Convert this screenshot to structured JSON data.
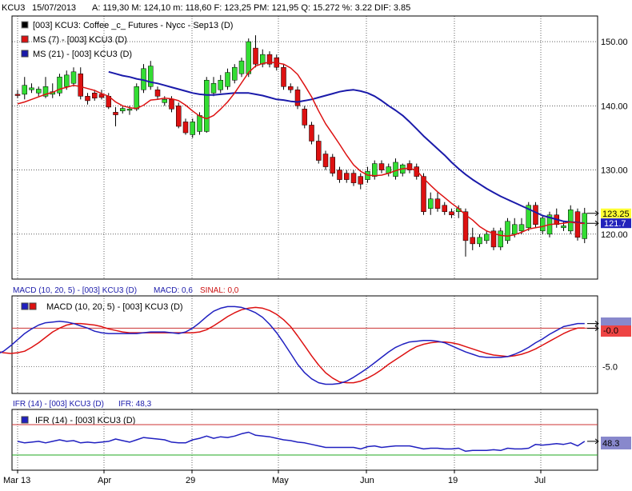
{
  "colors": {
    "up": "#33dd33",
    "down": "#dd1111",
    "ms_fast": "#dd1111",
    "ms_slow": "#1a1aaa",
    "macd": "#2020c0",
    "signal": "#dd1111",
    "ifr": "#2020c0",
    "ifr_upper": "#cc3333",
    "ifr_lower": "#22aa22",
    "grid": "#000000",
    "label_blue": "#1a1aaa",
    "label_red": "#cc1111"
  },
  "header": {
    "symbol": "KCU3",
    "date": "15/07/2013",
    "fields": "A: 119,30    M: 124,10    m: 118,60    F: 123,25   PM: 121,95   Q: 15.272   %: 3.22  DIF: 3.85"
  },
  "price_panel": {
    "legend": [
      {
        "icon": "black-square-icon",
        "text": "[003] KCU3: Coffee _c_ Futures - Nycc - Sep13      (D)"
      },
      {
        "icon": "red-square-icon",
        "text": "MS (7)   - [003] KCU3 (D)"
      },
      {
        "icon": "blue-square-icon",
        "text": "MS (21)   - [003] KCU3 (D)"
      }
    ],
    "last_label": "123.25",
    "ma_label": "121.7"
  },
  "macd_panel": {
    "header_name": "MACD (10, 20, 5)  - [003] KCU3 (D)",
    "header_macd": "MACD: 0,6",
    "header_signal": "SINAL: 0,0",
    "legend_text": "MACD (10, 20, 5)   - [003] KCU3 (D)",
    "last_label": "-0.0"
  },
  "ifr_panel": {
    "header_name": "IFR (14)  - [003] KCU3 (D)",
    "header_value": "IFR: 48,3",
    "legend_text": "IFR (14)   - [003] KCU3 (D)",
    "last_label": "48.3"
  },
  "x_axis": {
    "labels": [
      "Mar 13",
      "Apr",
      "29",
      "May",
      "Jun",
      "19",
      "Jul"
    ]
  },
  "chart_data": [
    {
      "type": "candlestick",
      "title": "KCU3: Coffee _c_ Futures - Nycc - Sep13",
      "ylim": [
        113,
        154
      ],
      "yticks": [
        120,
        130,
        140,
        150
      ],
      "yticklabels": [
        "120.00",
        "130.00",
        "140.00",
        "150.00"
      ],
      "grid": true,
      "candles": [
        {
          "o": 141.8,
          "h": 142.5,
          "l": 141.2,
          "c": 141.6
        },
        {
          "o": 141.8,
          "h": 144.5,
          "l": 141.0,
          "c": 143.2
        },
        {
          "o": 142.5,
          "h": 143.5,
          "l": 142.0,
          "c": 142.8
        },
        {
          "o": 142.0,
          "h": 143.0,
          "l": 141.5,
          "c": 142.6
        },
        {
          "o": 141.5,
          "h": 144.5,
          "l": 141.2,
          "c": 143.0
        },
        {
          "o": 141.8,
          "h": 143.5,
          "l": 141.2,
          "c": 142.2
        },
        {
          "o": 142.0,
          "h": 145.0,
          "l": 141.5,
          "c": 144.5
        },
        {
          "o": 143.0,
          "h": 145.5,
          "l": 142.5,
          "c": 144.8
        },
        {
          "o": 143.5,
          "h": 146.0,
          "l": 143.0,
          "c": 145.3
        },
        {
          "o": 145.0,
          "h": 146.0,
          "l": 141.0,
          "c": 141.5
        },
        {
          "o": 141.5,
          "h": 142.0,
          "l": 140.2,
          "c": 140.8
        },
        {
          "o": 142.0,
          "h": 142.5,
          "l": 140.8,
          "c": 141.2
        },
        {
          "o": 141.8,
          "h": 142.5,
          "l": 141.0,
          "c": 141.3
        },
        {
          "o": 141.5,
          "h": 142.0,
          "l": 139.5,
          "c": 139.8
        },
        {
          "o": 139.0,
          "h": 139.8,
          "l": 136.8,
          "c": 138.6
        },
        {
          "o": 139.2,
          "h": 140.0,
          "l": 138.8,
          "c": 139.6
        },
        {
          "o": 139.3,
          "h": 140.0,
          "l": 138.6,
          "c": 139.5
        },
        {
          "o": 139.5,
          "h": 143.5,
          "l": 139.2,
          "c": 143.0
        },
        {
          "o": 142.5,
          "h": 146.5,
          "l": 142.0,
          "c": 145.8
        },
        {
          "o": 143.0,
          "h": 147.0,
          "l": 142.5,
          "c": 146.2
        },
        {
          "o": 142.5,
          "h": 143.0,
          "l": 141.0,
          "c": 141.5
        },
        {
          "o": 140.5,
          "h": 141.5,
          "l": 140.0,
          "c": 141.0
        },
        {
          "o": 141.0,
          "h": 141.5,
          "l": 139.0,
          "c": 139.5
        },
        {
          "o": 140.0,
          "h": 140.5,
          "l": 136.5,
          "c": 136.8
        },
        {
          "o": 137.5,
          "h": 138.0,
          "l": 135.5,
          "c": 135.8
        },
        {
          "o": 135.5,
          "h": 138.0,
          "l": 135.0,
          "c": 137.5
        },
        {
          "o": 136.0,
          "h": 139.0,
          "l": 135.5,
          "c": 138.5
        },
        {
          "o": 136.0,
          "h": 144.5,
          "l": 135.8,
          "c": 144.0
        },
        {
          "o": 142.0,
          "h": 144.5,
          "l": 141.5,
          "c": 143.5
        },
        {
          "o": 142.5,
          "h": 144.8,
          "l": 142.0,
          "c": 144.0
        },
        {
          "o": 143.0,
          "h": 145.8,
          "l": 142.5,
          "c": 145.2
        },
        {
          "o": 144.0,
          "h": 146.5,
          "l": 143.5,
          "c": 146.0
        },
        {
          "o": 145.0,
          "h": 147.5,
          "l": 144.5,
          "c": 147.0
        },
        {
          "o": 145.0,
          "h": 150.5,
          "l": 144.5,
          "c": 150.0
        },
        {
          "o": 149.0,
          "h": 151.0,
          "l": 146.0,
          "c": 146.5
        },
        {
          "o": 146.5,
          "h": 148.8,
          "l": 146.0,
          "c": 148.0
        },
        {
          "o": 148.0,
          "h": 148.5,
          "l": 146.0,
          "c": 146.5
        },
        {
          "o": 147.5,
          "h": 148.0,
          "l": 145.5,
          "c": 146.0
        },
        {
          "o": 146.0,
          "h": 146.5,
          "l": 142.5,
          "c": 143.0
        },
        {
          "o": 143.0,
          "h": 143.5,
          "l": 142.0,
          "c": 142.5
        },
        {
          "o": 142.5,
          "h": 143.0,
          "l": 139.5,
          "c": 140.0
        },
        {
          "o": 139.5,
          "h": 140.0,
          "l": 136.5,
          "c": 137.0
        },
        {
          "o": 137.0,
          "h": 137.5,
          "l": 134.0,
          "c": 134.5
        },
        {
          "o": 134.5,
          "h": 135.5,
          "l": 131.0,
          "c": 131.5
        },
        {
          "o": 132.5,
          "h": 133.0,
          "l": 130.0,
          "c": 130.5
        },
        {
          "o": 132.0,
          "h": 132.5,
          "l": 129.0,
          "c": 129.5
        },
        {
          "o": 130.0,
          "h": 130.5,
          "l": 128.0,
          "c": 128.5
        },
        {
          "o": 129.5,
          "h": 130.0,
          "l": 128.0,
          "c": 128.5
        },
        {
          "o": 129.5,
          "h": 130.0,
          "l": 127.5,
          "c": 128.0
        },
        {
          "o": 129.0,
          "h": 129.5,
          "l": 127.0,
          "c": 127.8
        },
        {
          "o": 128.5,
          "h": 130.5,
          "l": 128.0,
          "c": 129.8
        },
        {
          "o": 129.0,
          "h": 131.5,
          "l": 128.5,
          "c": 131.0
        },
        {
          "o": 131.0,
          "h": 131.5,
          "l": 129.5,
          "c": 130.0
        },
        {
          "o": 129.5,
          "h": 131.0,
          "l": 129.0,
          "c": 130.5
        },
        {
          "o": 129.0,
          "h": 131.8,
          "l": 128.5,
          "c": 131.2
        },
        {
          "o": 129.5,
          "h": 131.0,
          "l": 129.0,
          "c": 130.8
        },
        {
          "o": 131.0,
          "h": 131.5,
          "l": 129.5,
          "c": 130.0
        },
        {
          "o": 130.5,
          "h": 131.0,
          "l": 128.5,
          "c": 129.0
        },
        {
          "o": 129.0,
          "h": 129.5,
          "l": 123.0,
          "c": 123.5
        },
        {
          "o": 124.0,
          "h": 126.5,
          "l": 123.0,
          "c": 125.5
        },
        {
          "o": 125.5,
          "h": 126.5,
          "l": 123.5,
          "c": 124.0
        },
        {
          "o": 124.5,
          "h": 125.0,
          "l": 123.0,
          "c": 123.5
        },
        {
          "o": 123.5,
          "h": 124.0,
          "l": 122.5,
          "c": 123.0
        },
        {
          "o": 123.5,
          "h": 124.5,
          "l": 122.5,
          "c": 124.0
        },
        {
          "o": 123.5,
          "h": 124.0,
          "l": 116.5,
          "c": 119.0
        },
        {
          "o": 119.5,
          "h": 121.0,
          "l": 117.5,
          "c": 118.5
        },
        {
          "o": 118.5,
          "h": 120.0,
          "l": 118.0,
          "c": 119.5
        },
        {
          "o": 119.0,
          "h": 120.5,
          "l": 118.5,
          "c": 120.0
        },
        {
          "o": 120.5,
          "h": 121.0,
          "l": 117.5,
          "c": 118.0
        },
        {
          "o": 118.0,
          "h": 121.0,
          "l": 117.5,
          "c": 120.5
        },
        {
          "o": 119.0,
          "h": 122.5,
          "l": 118.5,
          "c": 122.0
        },
        {
          "o": 120.0,
          "h": 122.5,
          "l": 119.5,
          "c": 121.5
        },
        {
          "o": 120.5,
          "h": 122.5,
          "l": 120.0,
          "c": 121.5
        },
        {
          "o": 121.0,
          "h": 125.0,
          "l": 120.5,
          "c": 124.5
        },
        {
          "o": 124.5,
          "h": 125.0,
          "l": 121.0,
          "c": 121.5
        },
        {
          "o": 120.5,
          "h": 123.0,
          "l": 120.0,
          "c": 122.5
        },
        {
          "o": 120.0,
          "h": 123.5,
          "l": 119.5,
          "c": 123.0
        },
        {
          "o": 123.0,
          "h": 124.0,
          "l": 121.0,
          "c": 121.5
        },
        {
          "o": 121.0,
          "h": 122.0,
          "l": 120.5,
          "c": 121.3
        },
        {
          "o": 120.5,
          "h": 124.5,
          "l": 120.0,
          "c": 123.8
        },
        {
          "o": 123.5,
          "h": 124.0,
          "l": 119.0,
          "c": 119.5
        },
        {
          "o": 119.3,
          "h": 124.1,
          "l": 118.6,
          "c": 123.25
        }
      ],
      "series": [
        {
          "name": "MS (7)",
          "values": [
            140.3,
            140.6,
            141.0,
            141.4,
            141.8,
            142.1,
            142.6,
            142.9,
            143.2,
            143.0,
            142.7,
            142.4,
            141.9,
            141.5,
            140.6,
            140.0,
            139.7,
            139.6,
            140.1,
            140.9,
            141.0,
            141.2,
            141.1,
            140.8,
            140.1,
            139.2,
            138.4,
            138.0,
            138.5,
            139.5,
            140.6,
            142.0,
            143.6,
            145.2,
            146.2,
            146.6,
            146.8,
            146.7,
            146.5,
            145.9,
            144.9,
            143.2,
            141.4,
            139.2,
            137.2,
            135.6,
            134.0,
            132.3,
            130.8,
            129.8,
            129.2,
            129.1,
            129.2,
            129.5,
            129.9,
            130.2,
            130.3,
            129.9,
            128.7,
            127.6,
            126.6,
            125.7,
            124.8,
            124.0,
            123.0,
            122.2,
            121.2,
            120.5,
            120.1,
            119.8,
            119.7,
            119.9,
            120.3,
            120.8,
            121.0,
            121.2,
            121.5,
            121.6,
            121.7,
            121.9,
            121.7,
            121.7
          ]
        },
        {
          "name": "MS (21)",
          "values": [
            145.3,
            145.0,
            144.7,
            144.5,
            144.2,
            144.0,
            143.7,
            143.5,
            143.2,
            142.9,
            142.6,
            142.3,
            142.0,
            141.8,
            141.7,
            141.7,
            141.8,
            141.9,
            142.0,
            142.0,
            142.0,
            141.8,
            141.6,
            141.3,
            141.0,
            140.9,
            140.7,
            140.6,
            140.8,
            141.0,
            141.3,
            141.6,
            141.9,
            142.2,
            142.4,
            142.5,
            142.3,
            142.0,
            141.5,
            140.8,
            140.0,
            139.3,
            138.5,
            137.5,
            136.4,
            135.3,
            134.3,
            133.3,
            132.3,
            131.2,
            130.2,
            129.3,
            128.5,
            127.8,
            127.1,
            126.5,
            125.9,
            125.4,
            124.9,
            124.4,
            123.9,
            123.4,
            122.9,
            122.6,
            122.3,
            122.0,
            121.9,
            121.8,
            121.7
          ]
        }
      ]
    },
    {
      "type": "line",
      "title": "MACD (10, 20, 5)",
      "ylim": [
        -8.5,
        4.2
      ],
      "yticks": [
        0,
        -5
      ],
      "yticklabels": [
        "-0.0",
        "-5.0"
      ],
      "reference_lines": [
        0
      ],
      "series": [
        {
          "name": "MACD",
          "values": [
            -3.5,
            -3.4,
            -3.0,
            -2.3,
            -1.5,
            -0.7,
            -0.1,
            0.4,
            0.7,
            0.8,
            0.9,
            0.8,
            0.6,
            0.3,
            0.0,
            -0.4,
            -0.6,
            -0.7,
            -0.7,
            -0.7,
            -0.7,
            -0.7,
            -0.6,
            -0.5,
            -0.5,
            -0.5,
            -0.6,
            -0.7,
            -0.5,
            0.0,
            0.7,
            1.5,
            2.2,
            2.6,
            2.8,
            2.8,
            2.7,
            2.4,
            2.0,
            1.4,
            0.5,
            -0.6,
            -1.9,
            -3.3,
            -4.7,
            -5.8,
            -6.6,
            -7.1,
            -7.3,
            -7.3,
            -7.2,
            -6.9,
            -6.4,
            -5.8,
            -5.2,
            -4.5,
            -3.8,
            -3.1,
            -2.5,
            -2.1,
            -1.8,
            -1.7,
            -1.6,
            -1.6,
            -1.7,
            -1.9,
            -2.3,
            -2.7,
            -3.1,
            -3.4,
            -3.7,
            -3.8,
            -3.8,
            -3.8,
            -3.7,
            -3.4,
            -3.0,
            -2.5,
            -1.9,
            -1.4,
            -0.8,
            -0.3,
            0.2,
            0.4,
            0.6,
            0.6
          ]
        },
        {
          "name": "SINAL",
          "values": [
            -3.0,
            -3.2,
            -3.3,
            -3.2,
            -3.0,
            -2.5,
            -1.9,
            -1.2,
            -0.5,
            0.0,
            0.4,
            0.6,
            0.6,
            0.5,
            0.4,
            0.2,
            -0.1,
            -0.3,
            -0.5,
            -0.6,
            -0.6,
            -0.6,
            -0.6,
            -0.6,
            -0.6,
            -0.6,
            -0.6,
            -0.6,
            -0.6,
            -0.5,
            -0.2,
            0.3,
            0.9,
            1.5,
            2.0,
            2.4,
            2.6,
            2.7,
            2.6,
            2.3,
            1.8,
            1.1,
            0.2,
            -1.0,
            -2.3,
            -3.6,
            -4.8,
            -5.8,
            -6.5,
            -7.0,
            -7.1,
            -7.1,
            -6.9,
            -6.5,
            -6.0,
            -5.4,
            -4.7,
            -4.1,
            -3.5,
            -2.9,
            -2.4,
            -2.1,
            -1.9,
            -1.8,
            -1.8,
            -1.9,
            -2.1,
            -2.4,
            -2.7,
            -3.0,
            -3.3,
            -3.5,
            -3.6,
            -3.7,
            -3.6,
            -3.4,
            -3.1,
            -2.7,
            -2.2,
            -1.7,
            -1.2,
            -0.7,
            -0.3,
            0.0,
            0.0
          ]
        }
      ]
    },
    {
      "type": "line",
      "title": "IFR (14)",
      "ylim": [
        10,
        90
      ],
      "reference_lines": [
        70,
        30
      ],
      "series": [
        {
          "name": "IFR",
          "values": [
            48,
            46,
            47,
            48,
            46,
            48,
            50,
            48,
            49,
            46,
            47,
            46,
            47,
            48,
            51,
            49,
            47,
            50,
            53,
            52,
            51,
            50,
            47,
            46,
            46,
            50,
            52,
            55,
            52,
            54,
            53,
            55,
            58,
            60,
            56,
            55,
            54,
            52,
            50,
            49,
            47,
            46,
            44,
            42,
            40,
            40,
            40,
            40,
            40,
            38,
            41,
            42,
            40,
            41,
            42,
            42,
            42,
            40,
            38,
            39,
            39,
            38,
            38,
            39,
            35,
            36,
            36,
            36,
            37,
            36,
            39,
            38,
            38,
            39,
            44,
            43,
            44,
            45,
            44,
            46,
            42,
            48
          ]
        }
      ]
    }
  ]
}
